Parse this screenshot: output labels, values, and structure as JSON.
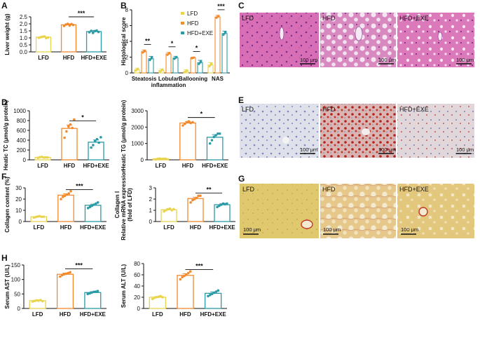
{
  "colors": {
    "LFD": "#e8d44d",
    "HFD": "#f28a2e",
    "HFD+EXE": "#2a9ba6"
  },
  "chart_data": [
    {
      "panel": "A",
      "type": "bar",
      "ylabel": "Liver weight (g)",
      "ylim": [
        0,
        2.5
      ],
      "yticks": [
        "0.0",
        "0.5",
        "1.0",
        "1.5",
        "2.0",
        "2.5"
      ],
      "yticks_v": [
        0,
        0.5,
        1,
        1.5,
        2,
        2.5
      ],
      "categories": [
        "LFD",
        "HFD",
        "HFD+EXE"
      ],
      "values": [
        1.05,
        1.93,
        1.45
      ],
      "errors": [
        0.05,
        0.07,
        0.08
      ],
      "points": [
        [
          1.0,
          1.05,
          1.08,
          1.1,
          0.98,
          1.02
        ],
        [
          1.85,
          1.95,
          2.0,
          1.88,
          1.98,
          1.92
        ],
        [
          1.4,
          1.5,
          1.35,
          1.48,
          1.52,
          1.42
        ]
      ],
      "significance": [
        {
          "pair": [
            1,
            2
          ],
          "label": "***"
        }
      ]
    },
    {
      "panel": "B",
      "type": "grouped-bar",
      "ylabel": "Histological score",
      "ylim": [
        0,
        8
      ],
      "yticks": [
        "0",
        "2",
        "4",
        "6",
        "8"
      ],
      "yticks_v": [
        0,
        2,
        4,
        6,
        8
      ],
      "categories": [
        "Steatosis",
        "Lobular\ninflammation",
        "Ballooning",
        "NAS"
      ],
      "legend": [
        "LFD",
        "HFD",
        "HFD+EXE"
      ],
      "series": [
        {
          "name": "LFD",
          "values": [
            0.4,
            0.3,
            0.2,
            1.0
          ],
          "errors": [
            0.2,
            0.2,
            0.2,
            0.3
          ]
        },
        {
          "name": "HFD",
          "values": [
            2.7,
            2.4,
            1.9,
            7.1
          ],
          "errors": [
            0.2,
            0.2,
            0.1,
            0.2
          ]
        },
        {
          "name": "HFD+EXE",
          "values": [
            1.8,
            1.9,
            1.3,
            5.0
          ],
          "errors": [
            0.3,
            0.2,
            0.3,
            0.3
          ]
        }
      ],
      "significance": [
        {
          "category": 0,
          "label": "**"
        },
        {
          "category": 1,
          "label": "*"
        },
        {
          "category": 2,
          "label": "*"
        },
        {
          "category": 3,
          "label": "***"
        }
      ]
    },
    {
      "panel": "D",
      "type": "bar",
      "ylabel": "Heatic TC (μmol/g protein)",
      "ylim": [
        0,
        1000
      ],
      "yticks": [
        "0",
        "200",
        "400",
        "600",
        "800",
        "1000"
      ],
      "yticks_v": [
        0,
        200,
        400,
        600,
        800,
        1000
      ],
      "categories": [
        "LFD",
        "HFD",
        "HFD+EXE"
      ],
      "values": [
        50,
        640,
        360
      ],
      "errors": [
        10,
        70,
        45
      ],
      "points": [
        [
          40,
          55,
          60,
          45,
          50,
          48
        ],
        [
          450,
          580,
          680,
          720,
          650,
          820
        ],
        [
          250,
          300,
          380,
          420,
          350,
          460
        ]
      ],
      "significance": [
        {
          "pair": [
            1,
            2
          ],
          "label": "*"
        }
      ]
    },
    {
      "panel": "D2",
      "type": "bar",
      "ylabel": "Heatic TG (μmol/g protein)",
      "ylim": [
        0,
        3000
      ],
      "yticks": [
        "0",
        "1000",
        "2000",
        "3000"
      ],
      "yticks_v": [
        0,
        1000,
        2000,
        3000
      ],
      "categories": [
        "LFD",
        "HFD",
        "HFD+EXE"
      ],
      "values": [
        60,
        2250,
        1380
      ],
      "errors": [
        20,
        80,
        160
      ],
      "points": [
        [
          30,
          60,
          80,
          50,
          70,
          70
        ],
        [
          2100,
          2200,
          2300,
          2350,
          2250,
          2300
        ],
        [
          1000,
          1200,
          1400,
          1500,
          1600,
          1600
        ]
      ],
      "significance": [
        {
          "pair": [
            1,
            2
          ],
          "label": "*"
        }
      ]
    },
    {
      "panel": "F",
      "type": "bar",
      "ylabel": "Collagen content (%)",
      "ylim": [
        0,
        30
      ],
      "yticks": [
        "0",
        "10",
        "20",
        "30"
      ],
      "yticks_v": [
        0,
        10,
        20,
        30
      ],
      "categories": [
        "LFD",
        "HFD",
        "HFD+EXE"
      ],
      "values": [
        4.2,
        23.5,
        14.5
      ],
      "errors": [
        0.4,
        1.2,
        1.0
      ],
      "points": [
        [
          3.5,
          4,
          4.5,
          4.8,
          4.2,
          4.3
        ],
        [
          20,
          22,
          23,
          24,
          25,
          27
        ],
        [
          12,
          13,
          14,
          15,
          16,
          17
        ]
      ],
      "significance": [
        {
          "pair": [
            1,
            2
          ],
          "label": "***"
        }
      ]
    },
    {
      "panel": "F2",
      "type": "bar",
      "ylabel": "Collagen Ⅰ\nRelative mRNA expression\n(fold of LFD)",
      "ylim": [
        0,
        3
      ],
      "yticks": [
        "0",
        "1",
        "2",
        "3"
      ],
      "yticks_v": [
        0,
        1,
        2,
        3
      ],
      "categories": [
        "LFD",
        "HFD",
        "HFD+EXE"
      ],
      "values": [
        1.05,
        2.05,
        1.5
      ],
      "errors": [
        0.08,
        0.12,
        0.08
      ],
      "points": [
        [
          0.9,
          1.0,
          1.1,
          1.15,
          1.0,
          1.1
        ],
        [
          1.7,
          1.9,
          2.0,
          2.1,
          2.3,
          2.3
        ],
        [
          1.3,
          1.4,
          1.5,
          1.6,
          1.55,
          1.6
        ]
      ],
      "significance": [
        {
          "pair": [
            1,
            2
          ],
          "label": "**"
        }
      ]
    },
    {
      "panel": "H",
      "type": "bar",
      "ylabel": "Serum AST (U/L)",
      "ylim": [
        0,
        150
      ],
      "yticks": [
        "0",
        "50",
        "100",
        "150"
      ],
      "yticks_v": [
        0,
        50,
        100,
        150
      ],
      "categories": [
        "LFD",
        "HFD",
        "HFD+EXE"
      ],
      "values": [
        27,
        118,
        55
      ],
      "errors": [
        2,
        4,
        3
      ],
      "points": [
        [
          24,
          26,
          28,
          27,
          29,
          25
        ],
        [
          110,
          115,
          118,
          120,
          122,
          125
        ],
        [
          50,
          52,
          55,
          57,
          58,
          60
        ]
      ],
      "significance": [
        {
          "pair": [
            1,
            2
          ],
          "label": "***"
        }
      ]
    },
    {
      "panel": "H2",
      "type": "bar",
      "ylabel": "Serum ALT (U/L)",
      "ylim": [
        0,
        80
      ],
      "yticks": [
        "0",
        "20",
        "40",
        "60",
        "80"
      ],
      "yticks_v": [
        0,
        20,
        40,
        60,
        80
      ],
      "categories": [
        "LFD",
        "HFD",
        "HFD+EXE"
      ],
      "values": [
        20,
        59,
        27
      ],
      "errors": [
        1.5,
        3,
        2.5
      ],
      "points": [
        [
          17,
          19,
          20,
          21,
          22,
          20
        ],
        [
          52,
          56,
          58,
          60,
          63,
          66
        ],
        [
          22,
          24,
          26,
          28,
          30,
          32
        ]
      ],
      "significance": [
        {
          "pair": [
            1,
            2
          ],
          "label": "***"
        }
      ]
    }
  ],
  "panel_letters": {
    "A": "A",
    "B": "B",
    "C": "C",
    "D": "D",
    "E": "E",
    "F": "F",
    "G": "G",
    "H": "H"
  },
  "image_panels": {
    "C": {
      "labels": [
        "LFD",
        "HFD",
        "HFD+EXE"
      ],
      "scale": "100 μm"
    },
    "E": {
      "labels": [
        "LFD",
        "HFD",
        "HFD+EXE"
      ],
      "scale": "100 μm"
    },
    "G": {
      "labels": [
        "LFD",
        "HFD",
        "HFD+EXE"
      ],
      "scale": "100 μm"
    }
  }
}
